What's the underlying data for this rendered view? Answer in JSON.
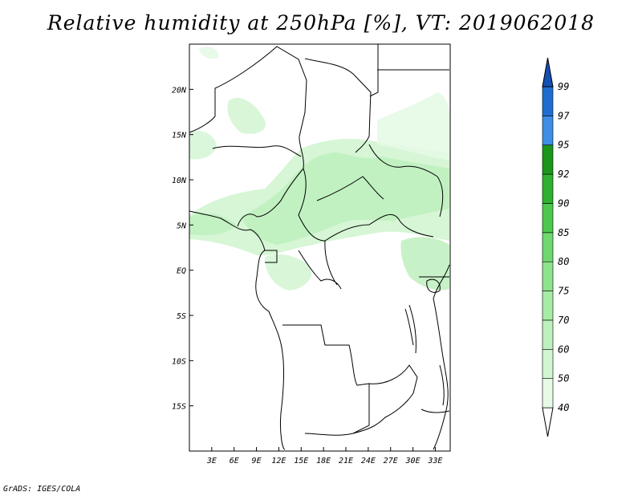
{
  "title": "Relative humidity at 250hPa [%], VT: 2019062018",
  "credit": "GrADS: IGES/COLA",
  "map": {
    "lon_range": [
      0,
      35
    ],
    "lat_range": [
      -20,
      25
    ],
    "lon_ticks": [
      "3E",
      "6E",
      "9E",
      "12E",
      "15E",
      "18E",
      "21E",
      "24E",
      "27E",
      "30E",
      "33E"
    ],
    "lat_ticks": [
      "20N",
      "15N",
      "10N",
      "5N",
      "EQ",
      "5S",
      "10S",
      "15S"
    ]
  },
  "colorbar": {
    "levels": [
      "40",
      "50",
      "60",
      "70",
      "75",
      "80",
      "85",
      "90",
      "92",
      "95",
      "97",
      "99"
    ],
    "colors": [
      "#ffffff",
      "#e6fae6",
      "#d2f5d2",
      "#bdf0bd",
      "#a6eba6",
      "#8ee38e",
      "#6fd86f",
      "#4cc94c",
      "#2fb02f",
      "#1a961a",
      "#3c8ee6",
      "#1e6ed2",
      "#1450b4"
    ]
  },
  "chart_data": {
    "type": "heatmap",
    "title": "Relative humidity at 250hPa [%], VT: 2019062018",
    "variable": "relative humidity",
    "units": "%",
    "level": "250hPa",
    "valid_time": "2019062018",
    "x_ticks": [
      "3E",
      "6E",
      "9E",
      "12E",
      "15E",
      "18E",
      "21E",
      "24E",
      "27E",
      "30E",
      "33E"
    ],
    "y_ticks": [
      "20N",
      "15N",
      "10N",
      "5N",
      "EQ",
      "5S",
      "10S",
      "15S"
    ],
    "contour_levels": [
      40,
      50,
      60,
      70,
      75,
      80,
      85,
      90,
      92,
      95,
      97,
      99
    ]
  }
}
